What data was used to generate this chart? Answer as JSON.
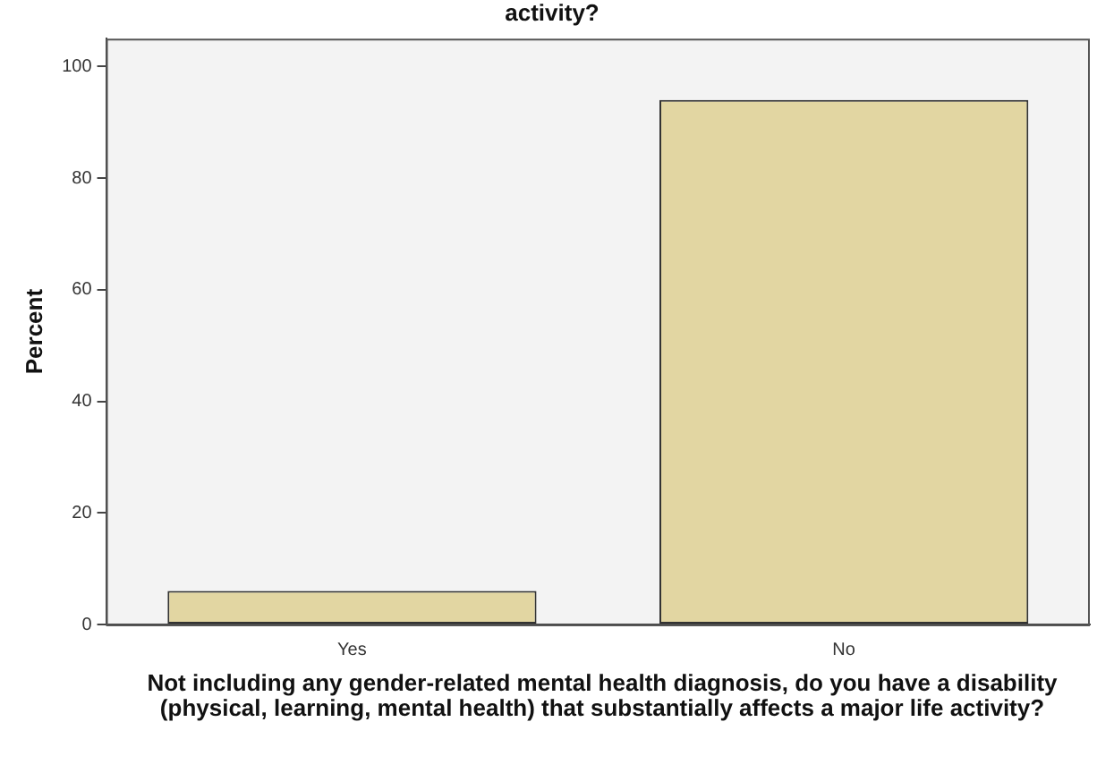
{
  "chart_data": {
    "type": "bar",
    "title": "activity?",
    "xlabel": "Not including any gender-related mental health diagnosis, do you have a disability (physical, learning, mental health) that substantially affects a major life activity?",
    "ylabel": "Percent",
    "categories": [
      "Yes",
      "No"
    ],
    "values": [
      6,
      94
    ],
    "color": "#e2d6a2",
    "ylim": [
      0,
      105
    ],
    "yticks": [
      0,
      20,
      40,
      60,
      80,
      100
    ],
    "grid": false,
    "legend": false
  }
}
